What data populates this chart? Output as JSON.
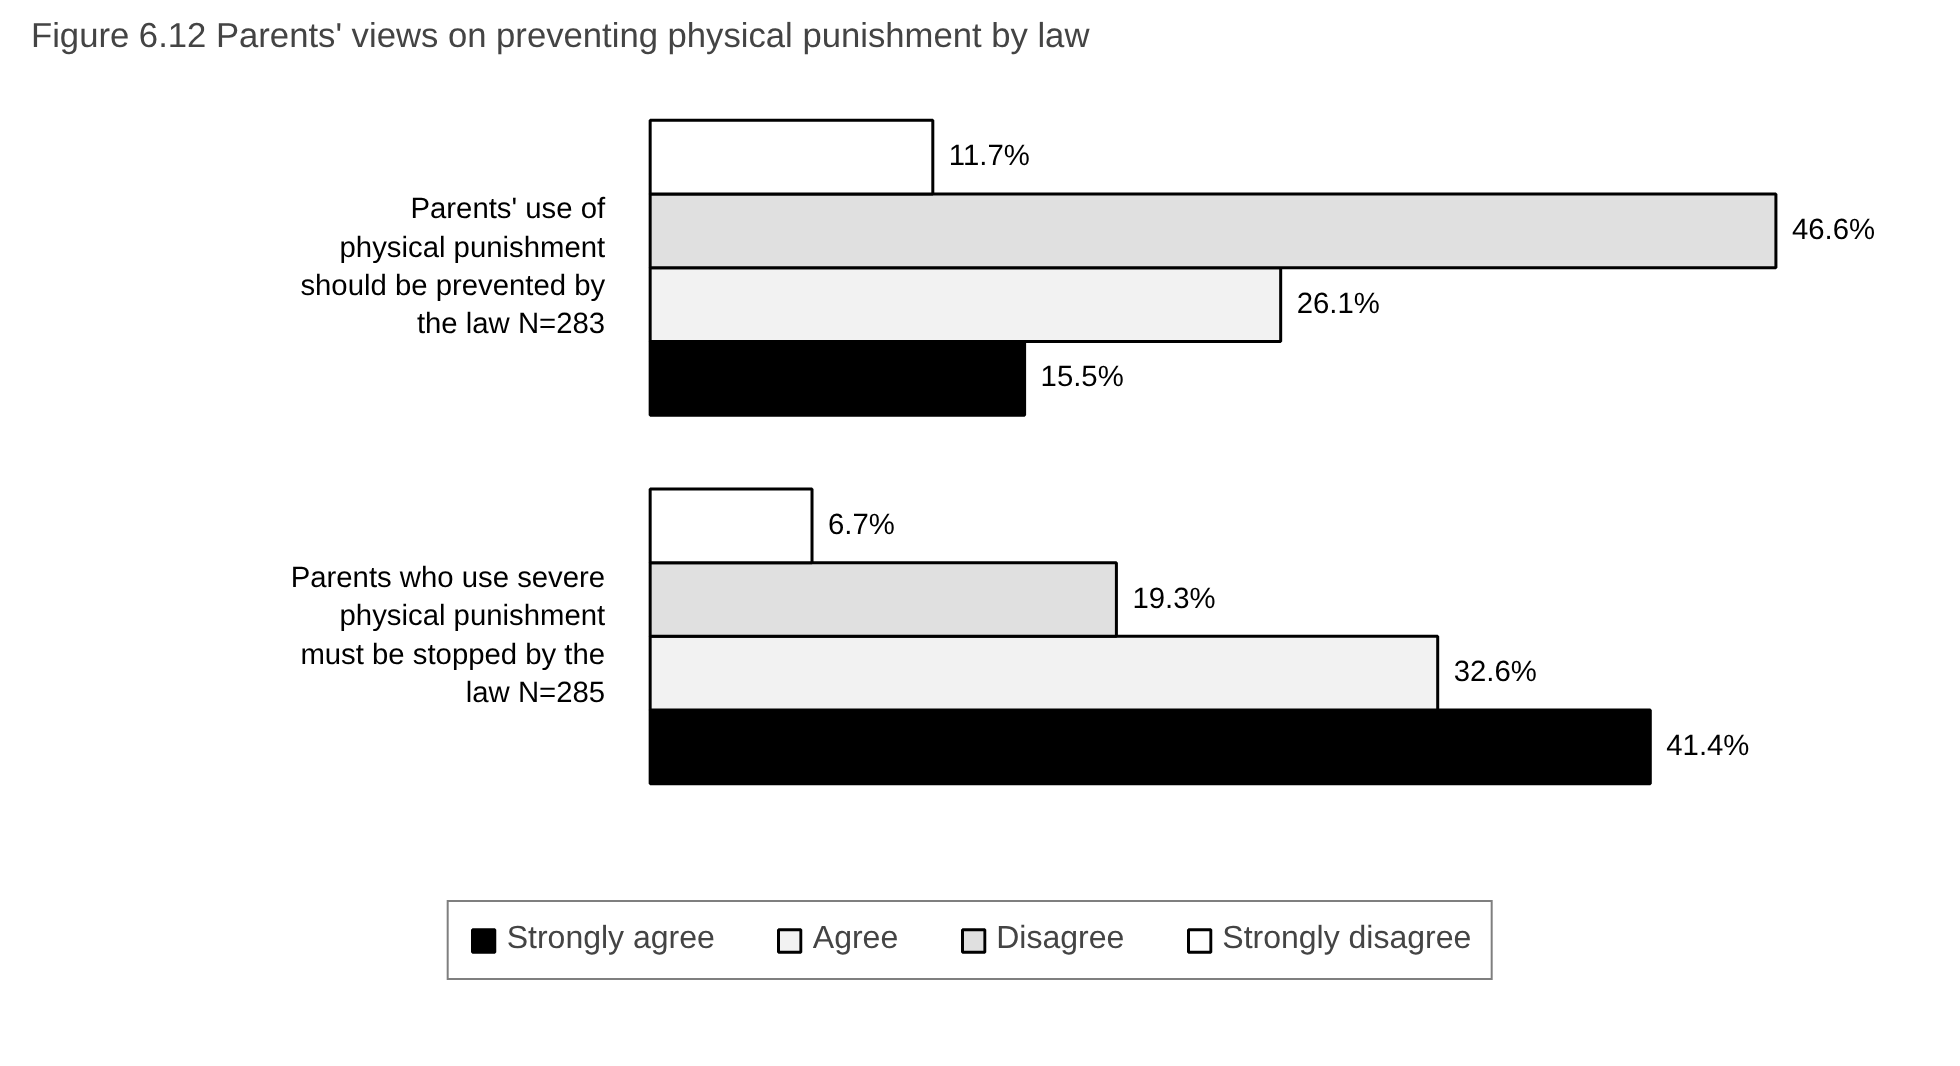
{
  "chart_data": {
    "type": "bar",
    "orientation": "horizontal",
    "title": "Figure 6.12 Parents' views on preventing physical punishment by law",
    "categories": [
      "Parents' use of physical punishment should be prevented by the law N=283",
      "Parents who use severe physical punishment must be stopped by the law N=285"
    ],
    "series": [
      {
        "name": "Strongly agree",
        "color": "#000000",
        "values": [
          15.5,
          41.4
        ],
        "value_labels": [
          "15.5%",
          "41.4%"
        ]
      },
      {
        "name": "Agree",
        "color": "#f2f2f2",
        "values": [
          26.1,
          32.6
        ],
        "value_labels": [
          "26.1%",
          "32.6%"
        ]
      },
      {
        "name": "Disagree",
        "color": "#e0e0e0",
        "values": [
          46.6,
          19.3
        ],
        "value_labels": [
          "46.6%",
          "19.3%"
        ]
      },
      {
        "name": "Strongly disagree",
        "color": "#ffffff",
        "values": [
          11.7,
          6.7
        ],
        "value_labels": [
          "11.7%",
          "6.7%"
        ]
      }
    ],
    "grid": false,
    "legend": "bottom"
  }
}
